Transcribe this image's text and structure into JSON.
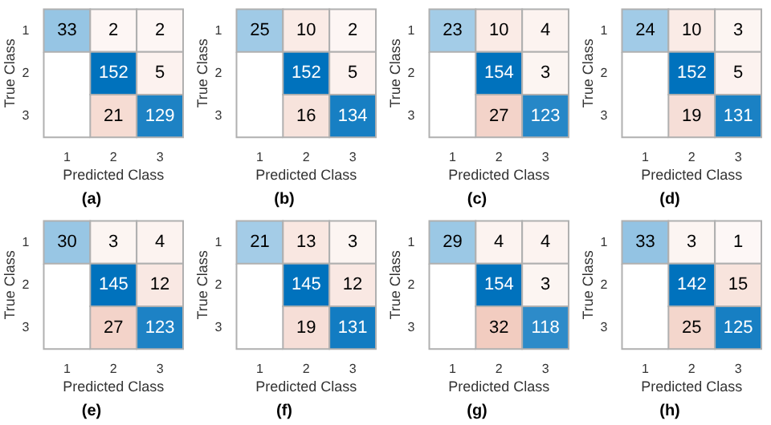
{
  "chart_data": [
    {
      "type": "heatmap",
      "title": "(a)",
      "xlabel": "Predicted Class",
      "ylabel": "True Class",
      "categories": [
        "1",
        "2",
        "3"
      ],
      "y_categories": [
        "1",
        "2",
        "3"
      ],
      "cells": [
        [
          33,
          2,
          2
        ],
        [
          null,
          152,
          5
        ],
        [
          null,
          21,
          129
        ]
      ],
      "data_labels": true
    },
    {
      "type": "heatmap",
      "title": "(b)",
      "xlabel": "Predicted Class",
      "ylabel": "True Class",
      "categories": [
        "1",
        "2",
        "3"
      ],
      "y_categories": [
        "1",
        "2",
        "3"
      ],
      "cells": [
        [
          25,
          10,
          2
        ],
        [
          null,
          152,
          5
        ],
        [
          null,
          16,
          134
        ]
      ],
      "data_labels": true
    },
    {
      "type": "heatmap",
      "title": "(c)",
      "xlabel": "Predicted Class",
      "ylabel": "True Class",
      "categories": [
        "1",
        "2",
        "3"
      ],
      "y_categories": [
        "1",
        "2",
        "3"
      ],
      "cells": [
        [
          23,
          10,
          4
        ],
        [
          null,
          154,
          3
        ],
        [
          null,
          27,
          123
        ]
      ],
      "data_labels": true
    },
    {
      "type": "heatmap",
      "title": "(d)",
      "xlabel": "Predicted Class",
      "ylabel": "True Class",
      "categories": [
        "1",
        "2",
        "3"
      ],
      "y_categories": [
        "1",
        "2",
        "3"
      ],
      "cells": [
        [
          24,
          10,
          3
        ],
        [
          null,
          152,
          5
        ],
        [
          null,
          19,
          131
        ]
      ],
      "data_labels": true
    },
    {
      "type": "heatmap",
      "title": "(e)",
      "xlabel": "Predicted Class",
      "ylabel": "True Class",
      "categories": [
        "1",
        "2",
        "3"
      ],
      "y_categories": [
        "1",
        "2",
        "3"
      ],
      "cells": [
        [
          30,
          3,
          4
        ],
        [
          null,
          145,
          12
        ],
        [
          null,
          27,
          123
        ]
      ],
      "data_labels": true
    },
    {
      "type": "heatmap",
      "title": "(f)",
      "xlabel": "Predicted Class",
      "ylabel": "True Class",
      "categories": [
        "1",
        "2",
        "3"
      ],
      "y_categories": [
        "1",
        "2",
        "3"
      ],
      "cells": [
        [
          21,
          13,
          3
        ],
        [
          null,
          145,
          12
        ],
        [
          null,
          19,
          131
        ]
      ],
      "data_labels": true
    },
    {
      "type": "heatmap",
      "title": "(g)",
      "xlabel": "Predicted Class",
      "ylabel": "True Class",
      "categories": [
        "1",
        "2",
        "3"
      ],
      "y_categories": [
        "1",
        "2",
        "3"
      ],
      "cells": [
        [
          29,
          4,
          4
        ],
        [
          null,
          154,
          3
        ],
        [
          null,
          32,
          118
        ]
      ],
      "data_labels": true
    },
    {
      "type": "heatmap",
      "title": "(h)",
      "xlabel": "Predicted Class",
      "ylabel": "True Class",
      "categories": [
        "1",
        "2",
        "3"
      ],
      "y_categories": [
        "1",
        "2",
        "3"
      ],
      "cells": [
        [
          33,
          3,
          1
        ],
        [
          null,
          142,
          15
        ],
        [
          null,
          25,
          125
        ]
      ],
      "data_labels": true
    }
  ]
}
